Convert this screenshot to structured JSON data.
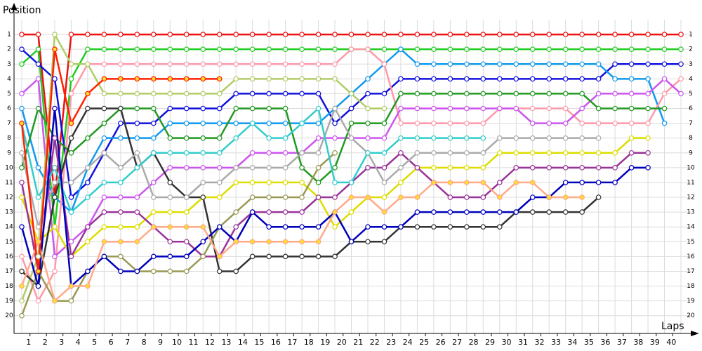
{
  "chart_data": {
    "type": "line",
    "y_label": "Position",
    "x_label": "Laps",
    "grid": true,
    "x": [
      0,
      1,
      2,
      3,
      4,
      5,
      6,
      7,
      8,
      9,
      10,
      11,
      12,
      13,
      14,
      15,
      16,
      17,
      18,
      19,
      20,
      21,
      22,
      23,
      24,
      25,
      26,
      27,
      28,
      29,
      30,
      31,
      32,
      33,
      34,
      35,
      36,
      37,
      38,
      39,
      40
    ],
    "xlim": [
      0,
      40
    ],
    "xticks": [
      {
        "value": 0.5,
        "label": "1"
      },
      {
        "value": 1.5,
        "label": "2"
      },
      {
        "value": 2.5,
        "label": "3"
      },
      {
        "value": 3.5,
        "label": "4"
      },
      {
        "value": 4.5,
        "label": "5"
      },
      {
        "value": 5.5,
        "label": "6"
      },
      {
        "value": 6.5,
        "label": "7"
      },
      {
        "value": 7.5,
        "label": "8"
      },
      {
        "value": 8.5,
        "label": "9"
      },
      {
        "value": 9.5,
        "label": "10"
      },
      {
        "value": 10.5,
        "label": "11"
      },
      {
        "value": 11.5,
        "label": "12"
      },
      {
        "value": 12.5,
        "label": "13"
      },
      {
        "value": 13.5,
        "label": "14"
      },
      {
        "value": 14.5,
        "label": "15"
      },
      {
        "value": 15.5,
        "label": "16"
      },
      {
        "value": 16.5,
        "label": "17"
      },
      {
        "value": 17.5,
        "label": "18"
      },
      {
        "value": 18.5,
        "label": "19"
      },
      {
        "value": 19.5,
        "label": "20"
      },
      {
        "value": 20.5,
        "label": "21"
      },
      {
        "value": 21.5,
        "label": "22"
      },
      {
        "value": 22.5,
        "label": "23"
      },
      {
        "value": 23.5,
        "label": "24"
      },
      {
        "value": 24.5,
        "label": "25"
      },
      {
        "value": 25.5,
        "label": "26"
      },
      {
        "value": 26.5,
        "label": "27"
      },
      {
        "value": 27.5,
        "label": "28"
      },
      {
        "value": 28.5,
        "label": "29"
      },
      {
        "value": 29.5,
        "label": "30"
      },
      {
        "value": 30.5,
        "label": "31"
      },
      {
        "value": 31.5,
        "label": "32"
      },
      {
        "value": 32.5,
        "label": "33"
      },
      {
        "value": 33.5,
        "label": "34"
      },
      {
        "value": 34.5,
        "label": "35"
      },
      {
        "value": 35.5,
        "label": "36"
      },
      {
        "value": 36.5,
        "label": "37"
      },
      {
        "value": 37.5,
        "label": "38"
      },
      {
        "value": 38.5,
        "label": "39"
      },
      {
        "value": 39.5,
        "label": "40"
      }
    ],
    "ylim": [
      21.2,
      0
    ],
    "yticks": [
      1,
      2,
      3,
      4,
      5,
      6,
      7,
      8,
      9,
      10,
      11,
      12,
      13,
      14,
      15,
      16,
      17,
      18,
      19,
      20
    ],
    "series": [
      {
        "color": "#ee1111",
        "values": [
          1,
          1,
          12,
          1,
          1,
          1,
          1,
          1,
          1,
          1,
          1,
          1,
          1,
          1,
          1,
          1,
          1,
          1,
          1,
          1,
          1,
          1,
          1,
          1,
          1,
          1,
          1,
          1,
          1,
          1,
          1,
          1,
          1,
          1,
          1,
          1,
          1,
          1,
          1,
          1,
          1
        ]
      },
      {
        "color": "#22cc22",
        "values": [
          3,
          2,
          14,
          4,
          2,
          2,
          2,
          2,
          2,
          2,
          2,
          2,
          2,
          2,
          2,
          2,
          2,
          2,
          2,
          2,
          2,
          2,
          2,
          2,
          2,
          2,
          2,
          2,
          2,
          2,
          2,
          2,
          2,
          2,
          2,
          2,
          2,
          2,
          2,
          2,
          2
        ]
      },
      {
        "color": "#1111dd",
        "values": [
          2,
          3,
          4,
          12,
          11,
          9,
          7,
          7,
          7,
          6,
          6,
          6,
          6,
          5,
          5,
          5,
          5,
          5,
          5,
          7,
          6,
          5,
          5,
          4,
          4,
          4,
          4,
          4,
          4,
          4,
          4,
          4,
          4,
          4,
          4,
          4,
          3,
          3,
          3,
          3,
          3
        ]
      },
      {
        "color": "#1199ee",
        "values": [
          6,
          10,
          12,
          13,
          10,
          8,
          8,
          8,
          8,
          7,
          7,
          7,
          7,
          7,
          7,
          7,
          7,
          7,
          7,
          6,
          5,
          4,
          3,
          2,
          3,
          3,
          3,
          3,
          3,
          3,
          3,
          3,
          3,
          3,
          3,
          3,
          4,
          4,
          4,
          7,
          null
        ]
      },
      {
        "color": "#ff99aa",
        "values": [
          16,
          19,
          17,
          5,
          3,
          3,
          3,
          3,
          3,
          3,
          3,
          3,
          3,
          3,
          3,
          3,
          3,
          3,
          3,
          3,
          2,
          2,
          3,
          7,
          7,
          7,
          7,
          7,
          7,
          6,
          6,
          6,
          6,
          6,
          7,
          7,
          7,
          7,
          7,
          5,
          4
        ]
      },
      {
        "color": "#cc55ee",
        "values": [
          5,
          4,
          16,
          15,
          14,
          12,
          12,
          12,
          11,
          10,
          10,
          10,
          10,
          10,
          9,
          9,
          9,
          9,
          8,
          8,
          8,
          8,
          8,
          6,
          6,
          6,
          6,
          6,
          6,
          6,
          6,
          7,
          7,
          7,
          6,
          5,
          5,
          5,
          5,
          4,
          5
        ]
      },
      {
        "color": "#229922",
        "values": [
          10,
          6,
          8,
          9,
          8,
          7,
          6,
          6,
          6,
          8,
          8,
          8,
          8,
          6,
          6,
          6,
          6,
          10,
          11,
          10,
          7,
          7,
          7,
          5,
          5,
          5,
          5,
          5,
          5,
          5,
          5,
          5,
          5,
          5,
          5,
          6,
          6,
          6,
          6,
          6,
          null
        ]
      },
      {
        "color": "#b0cc66",
        "values": [
          19,
          16,
          1,
          3,
          3,
          5,
          5,
          5,
          5,
          5,
          5,
          5,
          5,
          4,
          4,
          4,
          4,
          4,
          4,
          4,
          5,
          6,
          6,
          null,
          null,
          null,
          null,
          null,
          null,
          null,
          null,
          null,
          null,
          null,
          null,
          null,
          null,
          null,
          null,
          null,
          null
        ]
      },
      {
        "color": "#dddd00",
        "values": [
          12,
          15,
          14,
          16,
          15,
          14,
          14,
          14,
          13,
          13,
          13,
          12,
          12,
          11,
          11,
          11,
          11,
          11,
          12,
          14,
          13,
          12,
          12,
          11,
          10,
          10,
          10,
          10,
          10,
          9,
          9,
          9,
          9,
          9,
          9,
          9,
          9,
          8,
          8,
          null,
          null
        ]
      },
      {
        "color": "#993399",
        "values": [
          11,
          17,
          8,
          16,
          14,
          13,
          13,
          13,
          14,
          15,
          15,
          16,
          16,
          14,
          13,
          13,
          13,
          13,
          12,
          12,
          11,
          10,
          10,
          9,
          10,
          11,
          12,
          12,
          12,
          11,
          10,
          10,
          10,
          10,
          10,
          10,
          10,
          9,
          9,
          null,
          null
        ]
      },
      {
        "color": "#333333",
        "values": [
          17,
          18,
          12,
          8,
          6,
          6,
          6,
          10,
          9,
          11,
          12,
          12,
          17,
          17,
          16,
          16,
          16,
          16,
          16,
          16,
          15,
          15,
          15,
          14,
          14,
          14,
          14,
          14,
          14,
          14,
          13,
          13,
          13,
          13,
          13,
          12,
          null,
          null,
          null,
          null,
          null
        ]
      },
      {
        "color": "#999955",
        "values": [
          20,
          17,
          19,
          19,
          17,
          16,
          16,
          17,
          17,
          17,
          17,
          16,
          14,
          13,
          12,
          12,
          12,
          12,
          10,
          9,
          null,
          null,
          null,
          null,
          null,
          null,
          null,
          null,
          null,
          null,
          null,
          null,
          null,
          null,
          null,
          null,
          null,
          null,
          null,
          null,
          null
        ]
      },
      {
        "color": "#aaaaaa",
        "values": [
          9,
          14,
          11,
          11,
          10,
          9,
          10,
          9,
          12,
          12,
          12,
          11,
          11,
          10,
          10,
          10,
          10,
          9,
          9,
          6,
          8,
          9,
          11,
          10,
          9,
          9,
          9,
          9,
          9,
          8,
          8,
          8,
          8,
          8,
          8,
          8,
          null,
          null,
          null,
          null,
          null
        ]
      },
      {
        "color": "#33cccc",
        "values": [
          7,
          12,
          10,
          13,
          12,
          11,
          11,
          10,
          9,
          9,
          9,
          9,
          9,
          8,
          7,
          8,
          8,
          7,
          6,
          11,
          11,
          9,
          9,
          8,
          8,
          8,
          8,
          8,
          8,
          null,
          null,
          null,
          null,
          null,
          null,
          null,
          null,
          null,
          null,
          null,
          null
        ]
      },
      {
        "color": "#0000bb",
        "values": [
          14,
          18,
          6,
          18,
          17,
          16,
          17,
          17,
          16,
          16,
          16,
          15,
          14,
          15,
          13,
          14,
          14,
          14,
          14,
          13,
          15,
          14,
          14,
          14,
          13,
          13,
          13,
          13,
          13,
          13,
          13,
          12,
          12,
          11,
          11,
          11,
          11,
          10,
          10,
          null,
          null
        ]
      },
      {
        "color": "#ffaa88",
        "marker_fill": "#ffdd33",
        "values": [
          18,
          15,
          19,
          18,
          18,
          15,
          15,
          15,
          14,
          14,
          14,
          14,
          16,
          15,
          15,
          15,
          15,
          15,
          15,
          13,
          12,
          12,
          13,
          12,
          12,
          11,
          11,
          11,
          11,
          12,
          11,
          11,
          12,
          12,
          12,
          null,
          null,
          null,
          null,
          null,
          null
        ]
      },
      {
        "color": "#ff2200",
        "marker_fill": "#ffdd33",
        "values": [
          7,
          17,
          2,
          7,
          5,
          4,
          4,
          4,
          4,
          4,
          4,
          4,
          4,
          null,
          null,
          null,
          null,
          null,
          null,
          null,
          null,
          null,
          null,
          null,
          null,
          null,
          null,
          null,
          null,
          null,
          null,
          null,
          null,
          null,
          null,
          null,
          null,
          null,
          null,
          null,
          null
        ]
      }
    ]
  }
}
